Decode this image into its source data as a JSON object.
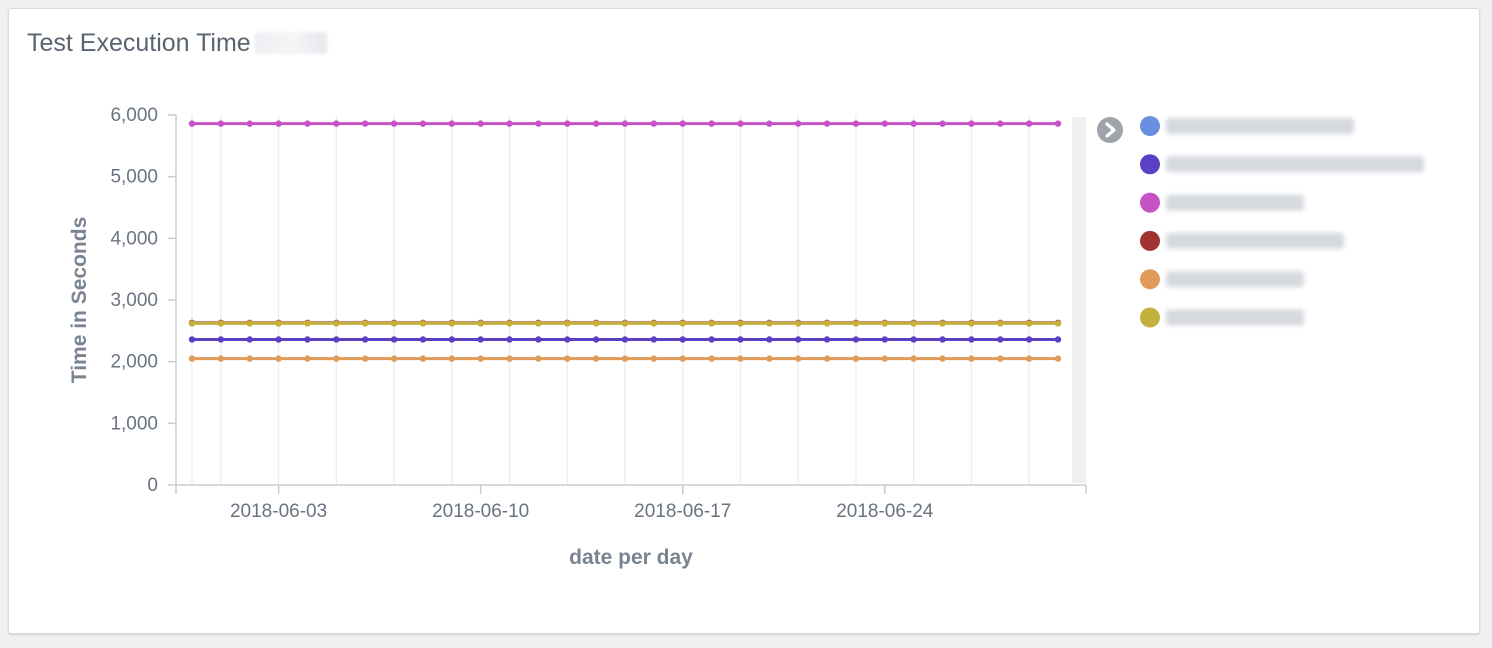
{
  "panel": {
    "title": "Test Execution Time"
  },
  "colors": {
    "grid": "#ececef",
    "axis": "#c8ccd2",
    "legend_scroll": "#eef0f2",
    "toggle_icon": "#a0a4aa"
  },
  "icons": {
    "legend_toggle": "chevron-right-circle-icon"
  },
  "chart_data": {
    "type": "line",
    "x": [
      "2018-05-31",
      "2018-06-01",
      "2018-06-02",
      "2018-06-03",
      "2018-06-04",
      "2018-06-05",
      "2018-06-06",
      "2018-06-07",
      "2018-06-08",
      "2018-06-09",
      "2018-06-10",
      "2018-06-11",
      "2018-06-12",
      "2018-06-13",
      "2018-06-14",
      "2018-06-15",
      "2018-06-16",
      "2018-06-17",
      "2018-06-18",
      "2018-06-19",
      "2018-06-20",
      "2018-06-21",
      "2018-06-22",
      "2018-06-23",
      "2018-06-24",
      "2018-06-25",
      "2018-06-26",
      "2018-06-27",
      "2018-06-28",
      "2018-06-29",
      "2018-06-30"
    ],
    "x_ticks": [
      "2018-06-03",
      "2018-06-10",
      "2018-06-17",
      "2018-06-24"
    ],
    "xlabel": "date per day",
    "ylabel": "Time in Seconds",
    "ylim": [
      0,
      6000
    ],
    "y_ticks": [
      0,
      1000,
      2000,
      3000,
      4000,
      5000,
      6000
    ],
    "y_tick_labels": [
      "0",
      "1,000",
      "2,000",
      "3,000",
      "4,000",
      "5,000",
      "6,000"
    ],
    "grid": true,
    "legend_position": "right",
    "series": [
      {
        "color": "#6a8fe0",
        "value": null
      },
      {
        "color": "#5b3fc4",
        "value": 2360
      },
      {
        "color": "#c653c6",
        "value": 5860
      },
      {
        "color": "#a23333",
        "value": 2630
      },
      {
        "color": "#e09a5a",
        "value": 2050
      },
      {
        "color": "#c4b03c",
        "value": 2620
      }
    ]
  }
}
